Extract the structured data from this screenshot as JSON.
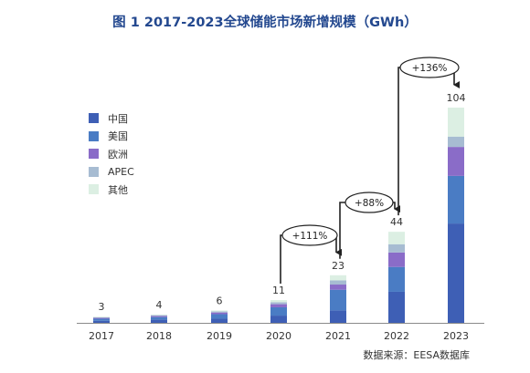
{
  "chart_data": {
    "type": "bar",
    "stacked": true,
    "title": "图 1  2017-2023全球储能市场新增规模（GWh）",
    "categories": [
      "2017",
      "2018",
      "2019",
      "2020",
      "2021",
      "2022",
      "2023"
    ],
    "totals": [
      3,
      4,
      6,
      11,
      23,
      44,
      104
    ],
    "total_labels": [
      "3",
      "4",
      "6",
      "11",
      "23",
      "44",
      "104"
    ],
    "series": [
      {
        "name": "中国",
        "color": "#3e5fb5",
        "values": [
          1.0,
          1.5,
          2.0,
          3.5,
          6.0,
          15.0,
          48.0
        ]
      },
      {
        "name": "美国",
        "color": "#4a7cc4",
        "values": [
          1.0,
          1.3,
          2.2,
          4.0,
          10.0,
          12.0,
          23.0
        ]
      },
      {
        "name": "欧洲",
        "color": "#8a6cc8",
        "values": [
          0.4,
          0.5,
          0.8,
          1.5,
          2.5,
          7.0,
          14.0
        ]
      },
      {
        "name": "APEC",
        "color": "#a7bcd2",
        "values": [
          0.3,
          0.4,
          0.5,
          1.0,
          2.0,
          4.0,
          5.0
        ]
      },
      {
        "name": "其他",
        "color": "#dcefe3",
        "values": [
          0.3,
          0.3,
          0.5,
          1.0,
          2.5,
          6.0,
          14.0
        ]
      }
    ],
    "ylim": [
      0,
      104
    ],
    "grid": false,
    "legend_position": "left",
    "annotations": [
      {
        "text": "+111%",
        "from": "2020",
        "to": "2021"
      },
      {
        "text": "+88%",
        "from": "2021",
        "to": "2022"
      },
      {
        "text": "+136%",
        "from": "2022",
        "to": "2023"
      }
    ],
    "source": "数据来源：EESA数据库"
  }
}
